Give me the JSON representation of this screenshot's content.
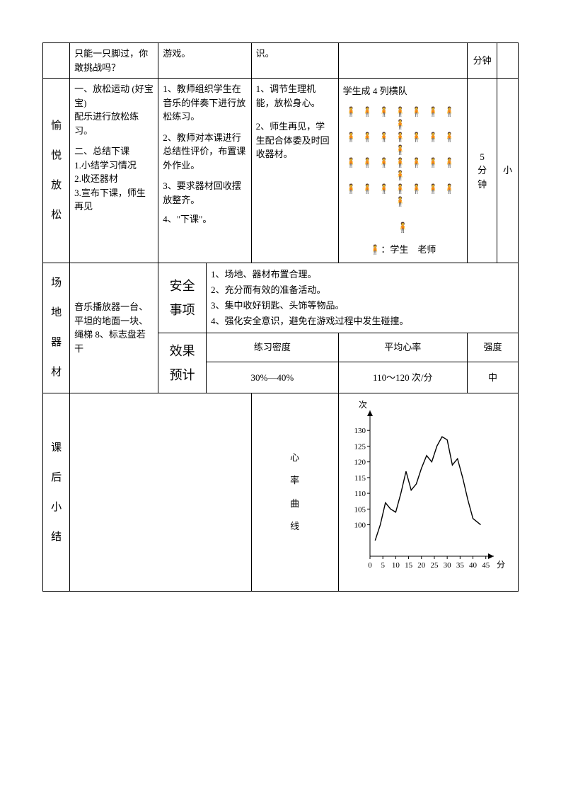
{
  "row1": {
    "c2": "只能一只脚过，你敢挑战吗？",
    "c3": "游戏。",
    "c4": "识。",
    "c6": "分钟"
  },
  "row2": {
    "label": "愉悦放松",
    "c2_a": "一、放松运动 (好宝宝)",
    "c2_b": "配乐进行放松练习。",
    "c2_c": "二、总结下课",
    "c2_d": "1.小结学习情况",
    "c2_e": "2.收还器材",
    "c2_f": "3.宣布下课，师生再见",
    "c3_1": "1、教师组织学生在音乐的伴奏下进行放松练习。",
    "c3_2": "2、教师对本课进行总结性评价，布置课外作业。",
    "c3_3": "3、要求器材回收摆放整齐。",
    "c3_4": "4、\"下课\"。",
    "c4_1": "1、调节生理机能，放松身心。",
    "c4_2": "2、师生再见，学生配合体委及时回收器材。",
    "formation_title": "学生成 4 列横队",
    "legend": "：学生　老师",
    "time": "5分钟",
    "intensity": "小"
  },
  "row3": {
    "label": "场地器材",
    "equip": "音乐播放器一台、平坦的地面一块、绳梯 8、标志盘若干",
    "safety_label": "安全事项",
    "safety_1": "1、场地、器材布置合理。",
    "safety_2": "2、充分而有效的准备活动。",
    "safety_3": "3、集中收好钥匙、头饰等物品。",
    "safety_4": "4、强化安全意识，避免在游戏过程中发生碰撞。",
    "effect_label": "效果预计",
    "hdr_density": "练习密度",
    "hdr_hr": "平均心率",
    "hdr_int": "强度",
    "val_density": "30%—40%",
    "val_hr": "110～120 次/分",
    "val_int": "中"
  },
  "row4": {
    "label": "课后小结",
    "chart_label": "心率曲线"
  },
  "chart": {
    "y_label": "次",
    "x_label": "分",
    "y_ticks": [
      "100",
      "105",
      "110",
      "115",
      "120",
      "125",
      "130"
    ],
    "x_ticks": [
      "0",
      "5",
      "10",
      "15",
      "20",
      "25",
      "30",
      "35",
      "40",
      "45"
    ],
    "points": [
      [
        2,
        95
      ],
      [
        4,
        100
      ],
      [
        6,
        107
      ],
      [
        8,
        105
      ],
      [
        10,
        104
      ],
      [
        12,
        110
      ],
      [
        14,
        117
      ],
      [
        16,
        111
      ],
      [
        18,
        113
      ],
      [
        20,
        118
      ],
      [
        22,
        122
      ],
      [
        24,
        120
      ],
      [
        26,
        125
      ],
      [
        28,
        128
      ],
      [
        30,
        127
      ],
      [
        32,
        119
      ],
      [
        34,
        121
      ],
      [
        36,
        115
      ],
      [
        38,
        108
      ],
      [
        40,
        102
      ],
      [
        43,
        100
      ]
    ],
    "y_min": 90,
    "y_max": 135,
    "x_min": 0,
    "x_max": 47
  }
}
